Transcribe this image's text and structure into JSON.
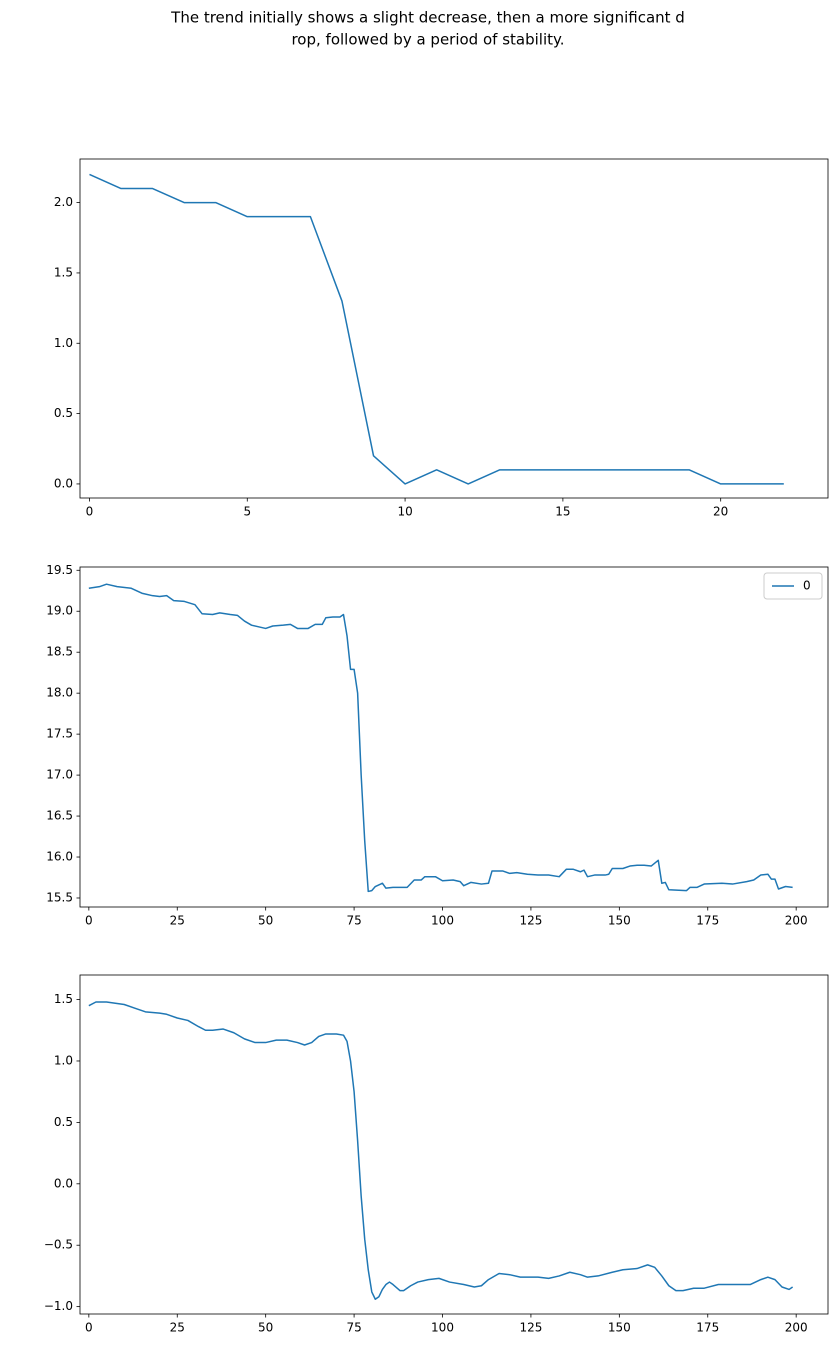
{
  "title_lines": [
    "The trend initially shows a slight decrease, then a more significant d",
    "rop, followed by a period of stability."
  ],
  "chart_data": [
    {
      "type": "line",
      "x": [
        0,
        1,
        2,
        3,
        4,
        5,
        6,
        7,
        8,
        9,
        10,
        11,
        12,
        13,
        14,
        15,
        16,
        17,
        18,
        19,
        20,
        21,
        22
      ],
      "series": [
        {
          "color": "#1f77b4",
          "values": [
            2.2,
            2.1,
            2.1,
            2.0,
            2.0,
            1.9,
            1.9,
            1.9,
            1.3,
            0.2,
            0,
            0.1,
            0,
            0.1,
            0.1,
            0.1,
            0.1,
            0.1,
            0.1,
            0.1,
            0,
            0,
            0
          ]
        }
      ],
      "xlim": [
        -0.3,
        23.4
      ],
      "xticks": [
        0,
        5,
        10,
        15,
        20
      ],
      "ylim": [
        -0.1,
        2.31
      ],
      "yticks": [
        {
          "value": 0.0,
          "label": "0.0"
        },
        0.5,
        {
          "value": 1.0,
          "label": "1.0"
        },
        1.5,
        {
          "value": 2.0,
          "label": "2.0"
        }
      ],
      "grid": false
    },
    {
      "type": "line",
      "x": [
        0,
        3,
        5,
        8,
        12,
        15,
        18,
        20,
        22,
        24,
        27,
        30,
        32,
        35,
        37,
        40,
        42,
        44,
        46,
        48,
        50,
        52,
        55,
        57,
        59,
        62,
        64,
        66,
        67,
        69,
        71,
        72,
        73,
        74,
        75,
        76,
        77,
        78,
        79,
        80,
        81,
        83,
        84,
        86,
        90,
        92,
        94,
        95,
        98,
        100,
        103,
        105,
        106,
        108,
        111,
        113,
        114,
        117,
        119,
        121,
        124,
        127,
        130,
        133,
        135,
        137,
        139,
        140,
        141,
        143,
        146,
        147,
        148,
        151,
        153,
        155,
        157,
        159,
        161,
        162,
        163,
        164,
        169,
        170,
        172,
        174,
        179,
        182,
        186,
        188,
        190,
        192,
        193,
        194,
        195,
        197,
        199
      ],
      "series": [
        {
          "name": "0",
          "color": "#1f77b4",
          "values": [
            19.28,
            19.3,
            19.33,
            19.3,
            19.28,
            19.22,
            19.19,
            19.18,
            19.19,
            19.13,
            19.12,
            19.08,
            18.97,
            18.96,
            18.98,
            18.96,
            18.95,
            18.88,
            18.83,
            18.81,
            18.79,
            18.82,
            18.83,
            18.84,
            18.79,
            18.79,
            18.84,
            18.84,
            18.92,
            18.93,
            18.93,
            18.96,
            18.7,
            18.29,
            18.29,
            18.0,
            17.0,
            16.2,
            15.58,
            15.59,
            15.64,
            15.68,
            15.62,
            15.63,
            15.63,
            15.72,
            15.72,
            15.76,
            15.76,
            15.71,
            15.72,
            15.7,
            15.65,
            15.69,
            15.67,
            15.68,
            15.83,
            15.83,
            15.8,
            15.81,
            15.79,
            15.78,
            15.78,
            15.76,
            15.85,
            15.85,
            15.82,
            15.84,
            15.76,
            15.78,
            15.78,
            15.79,
            15.86,
            15.86,
            15.89,
            15.9,
            15.9,
            15.89,
            15.96,
            15.68,
            15.69,
            15.6,
            15.59,
            15.63,
            15.63,
            15.67,
            15.68,
            15.67,
            15.7,
            15.72,
            15.78,
            15.79,
            15.73,
            15.73,
            15.61,
            15.64,
            15.63
          ]
        }
      ],
      "xlim": [
        -2.5,
        209
      ],
      "xticks": [
        0,
        25,
        50,
        75,
        100,
        125,
        150,
        175,
        200
      ],
      "ylim": [
        15.39,
        19.54
      ],
      "yticks": [
        15.5,
        {
          "value": 16.0,
          "label": "16.0"
        },
        16.5,
        {
          "value": 17.0,
          "label": "17.0"
        },
        17.5,
        {
          "value": 18.0,
          "label": "18.0"
        },
        18.5,
        {
          "value": 19.0,
          "label": "19.0"
        },
        19.5
      ],
      "grid": false,
      "legend": "upper right"
    },
    {
      "type": "line",
      "x": [
        0,
        2,
        5,
        10,
        13,
        16,
        20,
        22,
        25,
        28,
        31,
        33,
        35,
        38,
        41,
        44,
        47,
        50,
        53,
        56,
        59,
        61,
        63,
        65,
        67,
        70,
        72,
        73,
        74,
        75,
        76,
        77,
        78,
        79,
        80,
        81,
        82,
        83,
        84,
        85,
        86,
        88,
        89,
        91,
        93,
        96,
        99,
        102,
        106,
        109,
        111,
        113,
        116,
        119,
        122,
        127,
        130,
        133,
        136,
        139,
        141,
        144,
        148,
        151,
        155,
        158,
        160,
        162,
        164,
        166,
        168,
        171,
        174,
        178,
        182,
        187,
        190,
        192,
        194,
        196,
        198,
        199
      ],
      "series": [
        {
          "color": "#1f77b4",
          "values": [
            1.45,
            1.48,
            1.48,
            1.46,
            1.43,
            1.4,
            1.39,
            1.38,
            1.35,
            1.33,
            1.28,
            1.25,
            1.25,
            1.26,
            1.23,
            1.18,
            1.15,
            1.15,
            1.17,
            1.17,
            1.15,
            1.13,
            1.15,
            1.2,
            1.22,
            1.22,
            1.21,
            1.16,
            1.0,
            0.75,
            0.35,
            -0.1,
            -0.45,
            -0.7,
            -0.88,
            -0.94,
            -0.92,
            -0.86,
            -0.82,
            -0.8,
            -0.82,
            -0.87,
            -0.87,
            -0.83,
            -0.8,
            -0.78,
            -0.77,
            -0.8,
            -0.82,
            -0.84,
            -0.83,
            -0.78,
            -0.73,
            -0.74,
            -0.76,
            -0.76,
            -0.77,
            -0.75,
            -0.72,
            -0.74,
            -0.76,
            -0.75,
            -0.72,
            -0.7,
            -0.69,
            -0.66,
            -0.68,
            -0.75,
            -0.83,
            -0.87,
            -0.87,
            -0.85,
            -0.85,
            -0.82,
            -0.82,
            -0.82,
            -0.78,
            -0.76,
            -0.78,
            -0.84,
            -0.86,
            -0.84
          ]
        }
      ],
      "xlim": [
        -2.5,
        209
      ],
      "xticks": [
        0,
        25,
        50,
        75,
        100,
        125,
        150,
        175,
        200
      ],
      "ylim": [
        -1.06,
        1.7
      ],
      "yticks": [
        {
          "value": -1.0,
          "label": "−1.0"
        },
        {
          "value": -0.5,
          "label": "−0.5"
        },
        {
          "value": 0.0,
          "label": "0.0"
        },
        0.5,
        {
          "value": 1.0,
          "label": "1.0"
        },
        1.5
      ],
      "grid": false
    }
  ]
}
